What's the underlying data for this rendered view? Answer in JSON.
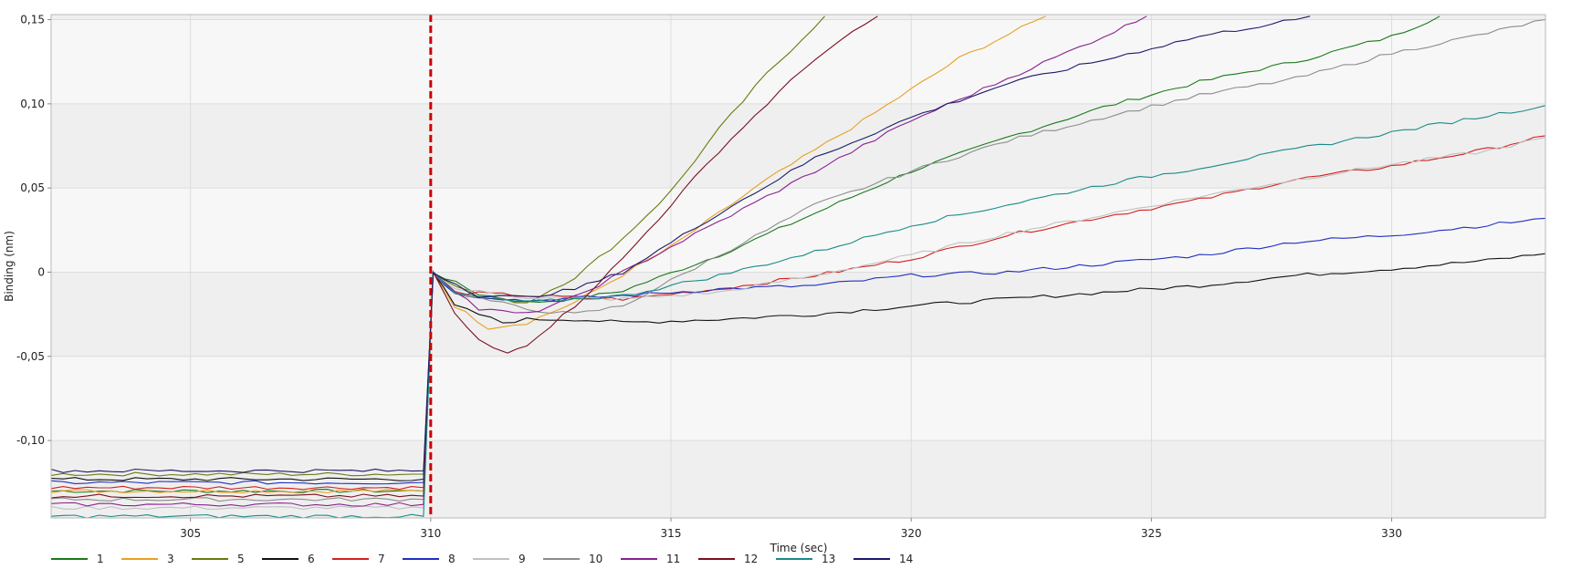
{
  "chart_data": {
    "type": "line",
    "title": "",
    "xlabel": "Time (sec)",
    "ylabel": "Binding (nm)",
    "xlim": [
      302.1,
      333.2
    ],
    "ylim": [
      -0.146,
      0.153
    ],
    "x_ticks": [
      305,
      310,
      315,
      320,
      325,
      330
    ],
    "x_tick_labels": [
      "305",
      "310",
      "315",
      "320",
      "325",
      "330"
    ],
    "y_ticks": [
      0.15,
      0.1,
      0.05,
      0,
      -0.05,
      -0.1
    ],
    "y_tick_labels": [
      "0,15",
      "0,10",
      "0,05",
      "0",
      "-0,05",
      "-0,10"
    ],
    "grid": true,
    "legend_position": "bottom",
    "association_marker": {
      "x": 310,
      "color": "#cc0000",
      "style": "dashed"
    },
    "series": [
      {
        "name": "1",
        "color": "#1a7a1a",
        "x": [
          302.1,
          309.85,
          310.05,
          311,
          312,
          313,
          314,
          316,
          318,
          320,
          322,
          324,
          326,
          328,
          330,
          331
        ],
        "y": [
          -0.13,
          -0.13,
          0,
          -0.013,
          -0.018,
          -0.016,
          -0.011,
          0.01,
          0.035,
          0.06,
          0.08,
          0.098,
          0.113,
          0.125,
          0.14,
          0.152
        ]
      },
      {
        "name": "3",
        "color": "#e8a020",
        "x": [
          302.1,
          309.85,
          310.05,
          310.5,
          311.2,
          312,
          313,
          315,
          317,
          319,
          321,
          322.8
        ],
        "y": [
          -0.13,
          -0.13,
          0,
          -0.02,
          -0.033,
          -0.03,
          -0.018,
          0.015,
          0.055,
          0.09,
          0.127,
          0.152
        ]
      },
      {
        "name": "5",
        "color": "#6b7a10",
        "x": [
          302.1,
          309.85,
          310.05,
          311,
          312,
          313,
          314,
          315,
          316,
          317,
          318.2
        ],
        "y": [
          -0.12,
          -0.12,
          0,
          -0.015,
          -0.018,
          -0.003,
          0.02,
          0.048,
          0.085,
          0.118,
          0.152
        ]
      },
      {
        "name": "6",
        "color": "#111111",
        "x": [
          302.1,
          309.85,
          310.05,
          310.5,
          311.5,
          312,
          313,
          314,
          316,
          318,
          320,
          322,
          324,
          326,
          328,
          330,
          332,
          333.2
        ],
        "y": [
          -0.123,
          -0.123,
          0,
          -0.02,
          -0.03,
          -0.028,
          -0.028,
          -0.03,
          -0.028,
          -0.025,
          -0.02,
          -0.016,
          -0.012,
          -0.008,
          -0.002,
          0.002,
          0.007,
          0.011
        ]
      },
      {
        "name": "7",
        "color": "#d42020",
        "x": [
          302.1,
          309.85,
          310.05,
          310.5,
          312,
          314,
          316,
          318,
          320,
          322,
          324,
          326,
          328,
          330,
          332,
          333.2
        ],
        "y": [
          -0.128,
          -0.128,
          0,
          -0.012,
          -0.014,
          -0.016,
          -0.01,
          -0.002,
          0.008,
          0.022,
          0.033,
          0.043,
          0.055,
          0.063,
          0.073,
          0.081
        ]
      },
      {
        "name": "8",
        "color": "#2030c0",
        "x": [
          302.1,
          309.85,
          310.05,
          310.5,
          312,
          314,
          316,
          318,
          320,
          322,
          324,
          326,
          328,
          330,
          332,
          333.2
        ],
        "y": [
          -0.125,
          -0.125,
          0,
          -0.013,
          -0.017,
          -0.014,
          -0.01,
          -0.008,
          -0.002,
          0.0,
          0.005,
          0.01,
          0.018,
          0.022,
          0.028,
          0.032
        ]
      },
      {
        "name": "9",
        "color": "#c0c0c0",
        "x": [
          302.1,
          309.85,
          310.05,
          310.5,
          312,
          314,
          316,
          318,
          320,
          322,
          324,
          326,
          328,
          330,
          332,
          333.2
        ],
        "y": [
          -0.14,
          -0.14,
          0,
          -0.01,
          -0.015,
          -0.016,
          -0.012,
          -0.002,
          0.01,
          0.023,
          0.034,
          0.045,
          0.055,
          0.064,
          0.072,
          0.08
        ]
      },
      {
        "name": "10",
        "color": "#8c8c8c",
        "x": [
          302.1,
          309.85,
          310.05,
          310.5,
          312,
          313,
          314,
          316,
          318,
          320,
          322,
          324,
          326,
          328,
          330,
          332,
          333.2
        ],
        "y": [
          -0.135,
          -0.135,
          0,
          -0.012,
          -0.022,
          -0.025,
          -0.02,
          0.01,
          0.04,
          0.06,
          0.078,
          0.092,
          0.105,
          0.115,
          0.13,
          0.142,
          0.15
        ]
      },
      {
        "name": "11",
        "color": "#8a2090",
        "x": [
          302.1,
          309.85,
          310.05,
          311,
          312,
          313,
          314,
          316,
          318,
          320,
          322,
          324,
          324.9
        ],
        "y": [
          -0.138,
          -0.138,
          0,
          -0.022,
          -0.025,
          -0.015,
          0.0,
          0.03,
          0.06,
          0.09,
          0.115,
          0.14,
          0.152
        ]
      },
      {
        "name": "12",
        "color": "#7a1020",
        "x": [
          302.1,
          309.85,
          310.05,
          310.5,
          311,
          311.6,
          312,
          313,
          314,
          315,
          316,
          317,
          318,
          319.3
        ],
        "y": [
          -0.133,
          -0.133,
          0,
          -0.025,
          -0.04,
          -0.048,
          -0.043,
          -0.02,
          0.008,
          0.04,
          0.072,
          0.1,
          0.127,
          0.152
        ]
      },
      {
        "name": "13",
        "color": "#1a8a8a",
        "x": [
          302.1,
          309.85,
          310.05,
          310.5,
          312,
          314,
          316,
          318,
          320,
          322,
          324,
          326,
          328,
          330,
          332,
          333.2
        ],
        "y": [
          -0.145,
          -0.145,
          0,
          -0.013,
          -0.018,
          -0.014,
          -0.002,
          0.012,
          0.028,
          0.04,
          0.052,
          0.062,
          0.073,
          0.083,
          0.093,
          0.099
        ]
      },
      {
        "name": "14",
        "color": "#1a1a6a",
        "x": [
          302.1,
          309.85,
          310.05,
          311,
          312,
          313,
          314,
          316,
          318,
          320,
          322,
          324,
          326,
          328,
          328.3
        ],
        "y": [
          -0.118,
          -0.118,
          0,
          -0.014,
          -0.015,
          -0.01,
          0.0,
          0.035,
          0.068,
          0.092,
          0.112,
          0.126,
          0.14,
          0.15,
          0.152
        ]
      }
    ]
  }
}
